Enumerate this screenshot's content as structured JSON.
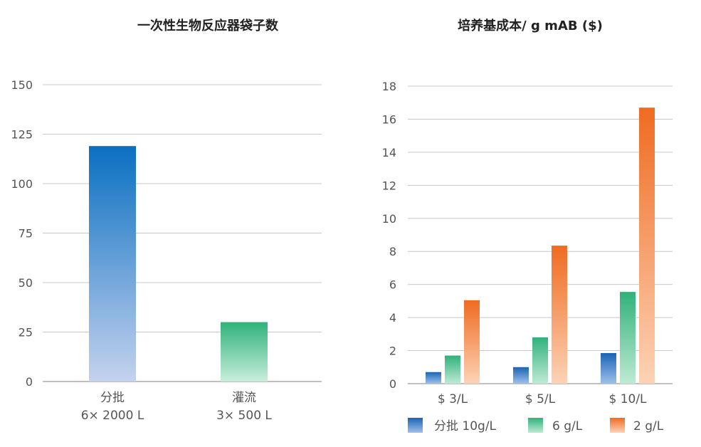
{
  "chart_data": [
    {
      "type": "bar",
      "title": "一次性生物反应器袋子数",
      "categories": [
        {
          "line1": "分批",
          "line2": "6× 2000 L"
        },
        {
          "line1": "灌流",
          "line2": "3× 500 L"
        }
      ],
      "values": [
        119,
        30
      ],
      "ylim": [
        0,
        150
      ],
      "yticks": [
        0,
        25,
        50,
        75,
        100,
        125,
        150
      ],
      "grid": true,
      "colors": {
        "batch_top": "#0a6fc2",
        "batch_bottom": "#c4d2ee",
        "perfusion_top": "#2fb27a",
        "perfusion_bottom": "#c9eedc"
      }
    },
    {
      "type": "bar",
      "title": "培养基成本/ g mAB ($)",
      "categories": [
        "$ 3/L",
        "$ 5/L",
        "$ 10/L"
      ],
      "series": [
        {
          "name": "分批 10g/L",
          "values": [
            0.7,
            1.0,
            1.85
          ],
          "color_top": "#1a64b5",
          "color_bottom": "#9fc0ea"
        },
        {
          "name": "6 g/L",
          "values": [
            1.7,
            2.8,
            5.55
          ],
          "color_top": "#30b27a",
          "color_bottom": "#bfead5"
        },
        {
          "name": "2 g/L",
          "values": [
            5.05,
            8.35,
            16.7
          ],
          "color_top": "#ef6b21",
          "color_bottom": "#fdd3b6"
        }
      ],
      "ylim": [
        0,
        18
      ],
      "yticks": [
        0,
        2,
        4,
        6,
        8,
        10,
        12,
        14,
        16,
        18
      ],
      "grid": true,
      "legend": "bottom"
    }
  ]
}
